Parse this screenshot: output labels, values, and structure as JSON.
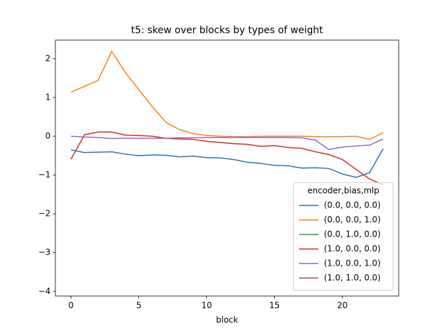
{
  "chart_data": {
    "type": "line",
    "title": "t5: skew over blocks by types of weight",
    "xlabel": "block",
    "x": [
      0,
      1,
      2,
      3,
      4,
      5,
      6,
      7,
      8,
      9,
      10,
      11,
      12,
      13,
      14,
      15,
      16,
      17,
      18,
      19,
      20,
      21,
      22,
      23
    ],
    "xlim": [
      -1.15,
      24.15
    ],
    "xticks": [
      0,
      5,
      10,
      15,
      20
    ],
    "ylim": [
      -4.12,
      2.48
    ],
    "yticks": [
      {
        "value": -4,
        "label": "−4"
      },
      {
        "value": -3,
        "label": "−3"
      },
      {
        "value": -2,
        "label": "−2"
      },
      {
        "value": -1,
        "label": "−1"
      },
      0,
      1,
      2
    ],
    "legend_title": "encoder,bias,mlp",
    "legend": "lower right",
    "grid": false,
    "series": [
      {
        "name": "(0.0, 0.0, 0.0)",
        "color": "#1f77b4",
        "values": [
          -0.35,
          -0.42,
          -0.41,
          -0.4,
          -0.46,
          -0.5,
          -0.48,
          -0.49,
          -0.53,
          -0.51,
          -0.55,
          -0.56,
          -0.6,
          -0.67,
          -0.7,
          -0.75,
          -0.76,
          -0.82,
          -0.81,
          -0.83,
          -0.97,
          -1.06,
          -0.94,
          -0.32
        ]
      },
      {
        "name": "(0.0, 0.0, 1.0)",
        "color": "#ff7f0e",
        "values": [
          1.14,
          1.29,
          1.44,
          2.19,
          1.65,
          1.2,
          0.76,
          0.36,
          0.17,
          0.07,
          0.02,
          0.0,
          -0.01,
          -0.01,
          0.0,
          0.0,
          0.0,
          0.0,
          -0.01,
          -0.01,
          -0.01,
          0.0,
          -0.08,
          0.09
        ]
      },
      {
        "name": "(0.0, 1.0, 0.0)",
        "color": "#2ca02c",
        "values": [
          null,
          null,
          null,
          null,
          null,
          null,
          null,
          null,
          null,
          null,
          null,
          null,
          null,
          null,
          null,
          null,
          null,
          null,
          null,
          null,
          null,
          null,
          null,
          null
        ]
      },
      {
        "name": "(1.0, 0.0, 0.0)",
        "color": "#d62728",
        "values": [
          -0.59,
          0.04,
          0.11,
          0.11,
          0.03,
          0.02,
          0.0,
          -0.05,
          -0.07,
          -0.08,
          -0.13,
          -0.16,
          -0.19,
          -0.21,
          -0.26,
          -0.24,
          -0.29,
          -0.31,
          -0.4,
          -0.47,
          -0.6,
          -0.85,
          -1.1,
          -1.25
        ]
      },
      {
        "name": "(1.0, 0.0, 1.0)",
        "color": "#9467bd",
        "values": [
          0.0,
          -0.02,
          -0.03,
          -0.06,
          -0.05,
          -0.05,
          -0.05,
          -0.05,
          -0.04,
          -0.04,
          -0.03,
          -0.03,
          -0.03,
          -0.03,
          -0.03,
          -0.03,
          -0.03,
          -0.04,
          -0.1,
          -0.34,
          -0.28,
          -0.25,
          -0.23,
          -0.07
        ]
      },
      {
        "name": "(1.0, 1.0, 0.0)",
        "color": "#8c564b",
        "values": [
          null,
          null,
          null,
          null,
          null,
          null,
          null,
          null,
          null,
          null,
          null,
          null,
          null,
          null,
          null,
          null,
          null,
          null,
          null,
          null,
          null,
          null,
          null,
          null
        ]
      }
    ]
  }
}
